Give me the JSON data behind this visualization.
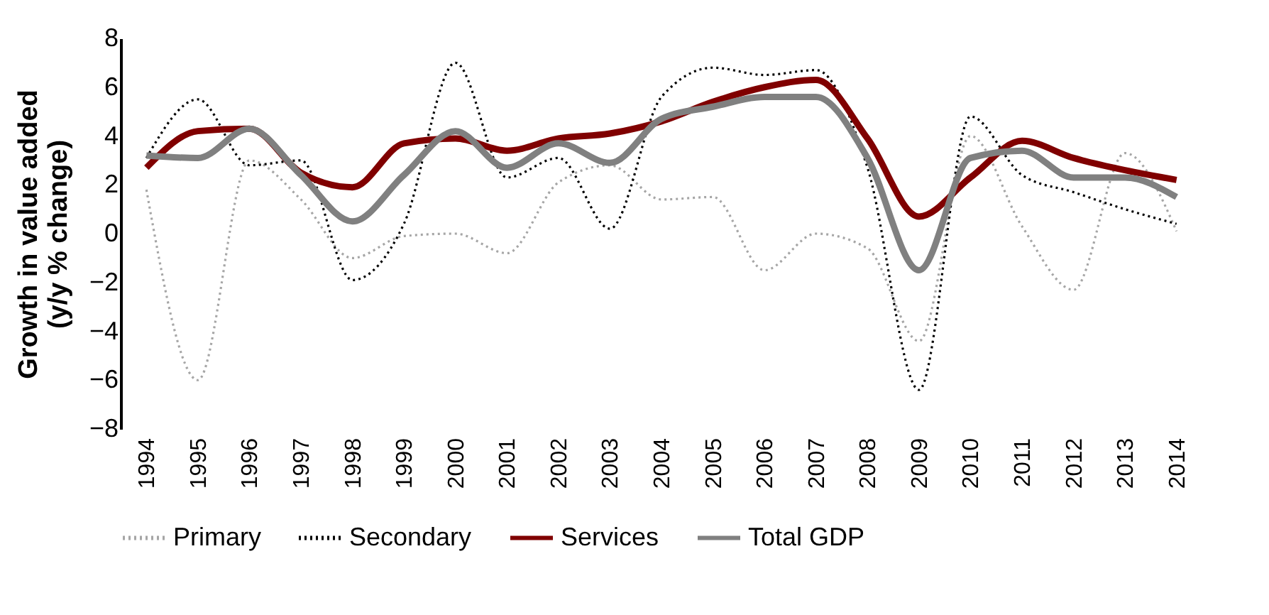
{
  "chart_data": {
    "type": "line",
    "ylabel": "Growth in value added\n(y/y % change)",
    "categories": [
      "1994",
      "1995",
      "1996",
      "1997",
      "1998",
      "1999",
      "2000",
      "2001",
      "2002",
      "2003",
      "2004",
      "2005",
      "2006",
      "2007",
      "2008",
      "2009",
      "2010",
      "2011",
      "2012",
      "2013",
      "2014"
    ],
    "series": [
      {
        "name": "Primary",
        "color": "#a6a6a6",
        "line_style": "dotted",
        "values": [
          1.8,
          -6.0,
          3.0,
          1.4,
          -1.0,
          -0.1,
          0.0,
          -0.8,
          2.1,
          2.8,
          1.4,
          1.5,
          -1.5,
          0.0,
          -0.6,
          -4.4,
          4.0,
          0.3,
          -2.3,
          3.3,
          0.1
        ]
      },
      {
        "name": "Secondary",
        "color": "#000000",
        "line_style": "dotted",
        "values": [
          3.1,
          5.5,
          2.8,
          3.0,
          -1.9,
          0.4,
          7.0,
          2.3,
          3.1,
          0.2,
          5.6,
          6.8,
          6.5,
          6.7,
          2.7,
          -6.4,
          4.8,
          2.4,
          1.7,
          1.0,
          0.4
        ]
      },
      {
        "name": "Services",
        "color": "#800000",
        "line_style": "solid",
        "values": [
          2.7,
          4.2,
          4.3,
          2.5,
          1.9,
          3.7,
          3.9,
          3.4,
          3.9,
          4.1,
          4.6,
          5.4,
          6.0,
          6.3,
          3.9,
          0.7,
          2.3,
          3.8,
          3.1,
          2.6,
          2.2
        ]
      },
      {
        "name": "Total GDP",
        "color": "#808080",
        "line_style": "solid",
        "values": [
          3.2,
          3.1,
          4.3,
          2.4,
          0.5,
          2.4,
          4.2,
          2.7,
          3.7,
          2.9,
          4.7,
          5.2,
          5.6,
          5.6,
          3.1,
          -1.5,
          3.1,
          3.4,
          2.3,
          2.3,
          1.5
        ]
      }
    ],
    "ylim": [
      -8,
      8
    ],
    "yticks": [
      -8,
      -6,
      -4,
      -2,
      0,
      2,
      4,
      6,
      8
    ],
    "grid": false,
    "legend": "bottom"
  }
}
